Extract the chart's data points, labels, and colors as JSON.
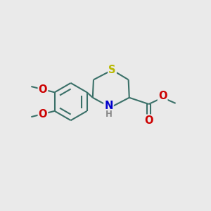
{
  "bg_color": "#eaeaea",
  "bond_color": "#3a7068",
  "bond_width": 1.5,
  "atom_colors": {
    "S": "#b8b800",
    "N": "#0000cc",
    "O": "#cc0000",
    "H": "#888888",
    "C": "#3a7068"
  },
  "figsize": [
    3.0,
    3.0
  ],
  "dpi": 100,
  "xlim": [
    0,
    10
  ],
  "ylim": [
    0,
    10
  ]
}
